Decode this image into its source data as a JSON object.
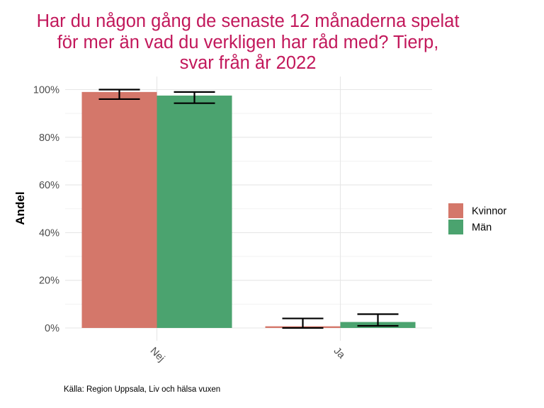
{
  "chart_data": {
    "type": "bar",
    "title_lines": [
      "Har du någon gång de senaste 12 månaderna spelat",
      "för mer än vad du verkligen har råd med? Tierp,",
      "svar från år 2022"
    ],
    "xlabel": "",
    "ylabel": "Andel",
    "caption": "Källa: Region Uppsala, Liv och hälsa vuxen",
    "categories": [
      "Nej",
      "Ja"
    ],
    "ylim": [
      0,
      1.05
    ],
    "y_ticks": [
      0,
      0.2,
      0.4,
      0.6,
      0.8,
      1.0
    ],
    "y_tick_labels": [
      "0%",
      "20%",
      "40%",
      "60%",
      "80%",
      "100%"
    ],
    "grid": true,
    "legend_position": "right",
    "series": [
      {
        "name": "Kvinnor",
        "color": "#D4776A",
        "values": [
          0.99,
          0.007
        ],
        "error_low": [
          0.96,
          0.0
        ],
        "error_high": [
          1.0,
          0.04
        ]
      },
      {
        "name": "Män",
        "color": "#4BA36F",
        "values": [
          0.975,
          0.025
        ],
        "error_low": [
          0.943,
          0.009
        ],
        "error_high": [
          0.99,
          0.058
        ]
      }
    ]
  }
}
